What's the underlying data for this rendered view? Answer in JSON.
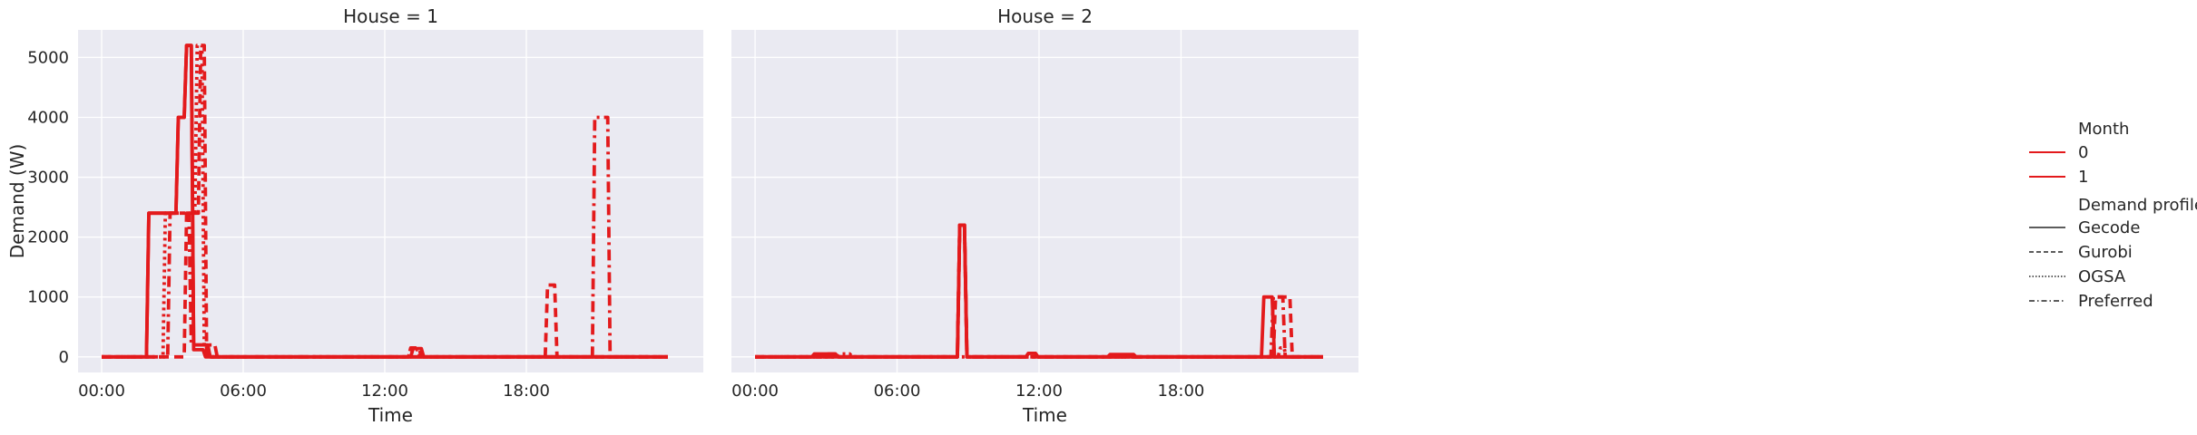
{
  "chart_data": {
    "type": "line",
    "ylabel": "Demand (W)",
    "xlabel": "Time",
    "y_ticks": [
      0,
      1000,
      2000,
      3000,
      4000,
      5000
    ],
    "x_ticks": [
      "00:00",
      "06:00",
      "12:00",
      "18:00"
    ],
    "x_tick_hours": [
      0,
      6,
      12,
      18
    ],
    "xlim_hours": [
      -1.0,
      25.5
    ],
    "ylim": [
      -260,
      5460
    ],
    "grid": true,
    "legend_placement": "right",
    "colors": {
      "line": "#e31a1c",
      "panel_bg": "#eaeaf2",
      "grid": "#ffffff",
      "text": "#262626"
    },
    "legend": {
      "hue_title": "Month",
      "hue_items": [
        "0",
        "1"
      ],
      "style_title": "Demand profile",
      "style_items": [
        {
          "label": "Gecode",
          "dash": "solid"
        },
        {
          "label": "Gurobi",
          "dash": "dashed"
        },
        {
          "label": "OGSA",
          "dash": "dotted"
        },
        {
          "label": "Preferred",
          "dash": "dashdot"
        }
      ]
    },
    "panels": [
      {
        "title": "House = 1",
        "series": [
          {
            "month": "0",
            "profile": "Gecode",
            "points": [
              [
                0,
                0
              ],
              [
                1.9,
                0
              ],
              [
                2.0,
                2400
              ],
              [
                3.15,
                2400
              ],
              [
                3.25,
                4000
              ],
              [
                3.5,
                4000
              ],
              [
                3.6,
                5200
              ],
              [
                3.8,
                5200
              ],
              [
                3.9,
                200
              ],
              [
                4.5,
                200
              ],
              [
                4.6,
                0
              ],
              [
                13.1,
                0
              ],
              [
                13.2,
                140
              ],
              [
                13.55,
                140
              ],
              [
                13.65,
                0
              ],
              [
                24,
                0
              ]
            ]
          },
          {
            "month": "1",
            "profile": "Gecode",
            "points": [
              [
                0,
                0
              ],
              [
                1.9,
                0
              ],
              [
                2.0,
                2400
              ],
              [
                3.15,
                2400
              ],
              [
                3.25,
                4000
              ],
              [
                3.5,
                4000
              ],
              [
                3.6,
                5200
              ],
              [
                3.8,
                5200
              ],
              [
                3.9,
                120
              ],
              [
                4.3,
                120
              ],
              [
                4.4,
                0
              ],
              [
                24,
                0
              ]
            ]
          },
          {
            "month": "0",
            "profile": "Gurobi",
            "points": [
              [
                0,
                0
              ],
              [
                3.5,
                0
              ],
              [
                3.6,
                2400
              ],
              [
                4.1,
                2400
              ],
              [
                4.2,
                5200
              ],
              [
                4.35,
                5200
              ],
              [
                4.45,
                0
              ],
              [
                13.0,
                0
              ],
              [
                13.1,
                150
              ],
              [
                13.45,
                150
              ],
              [
                13.55,
                0
              ],
              [
                18.8,
                0
              ],
              [
                18.9,
                1200
              ],
              [
                19.2,
                1200
              ],
              [
                19.3,
                0
              ],
              [
                24,
                0
              ]
            ]
          },
          {
            "month": "0",
            "profile": "OGSA",
            "points": [
              [
                0,
                0
              ],
              [
                2.6,
                0
              ],
              [
                2.7,
                2400
              ],
              [
                3.95,
                2400
              ],
              [
                4.05,
                5200
              ],
              [
                4.25,
                5200
              ],
              [
                4.35,
                150
              ],
              [
                4.5,
                150
              ],
              [
                4.6,
                0
              ],
              [
                13.0,
                0
              ],
              [
                13.1,
                120
              ],
              [
                13.4,
                120
              ],
              [
                13.5,
                0
              ],
              [
                24,
                0
              ]
            ]
          },
          {
            "month": "0",
            "profile": "Preferred",
            "points": [
              [
                0,
                0
              ],
              [
                2.8,
                0
              ],
              [
                2.9,
                2400
              ],
              [
                3.7,
                2400
              ],
              [
                3.8,
                200
              ],
              [
                4.8,
                200
              ],
              [
                4.9,
                0
              ],
              [
                20.8,
                0
              ],
              [
                20.9,
                4000
              ],
              [
                21.45,
                4000
              ],
              [
                21.55,
                0
              ],
              [
                24,
                0
              ]
            ]
          }
        ]
      },
      {
        "title": "House = 2",
        "series": [
          {
            "month": "0",
            "profile": "Gecode",
            "points": [
              [
                0,
                0
              ],
              [
                2.4,
                0
              ],
              [
                2.5,
                50
              ],
              [
                3.4,
                50
              ],
              [
                3.5,
                0
              ],
              [
                8.55,
                0
              ],
              [
                8.65,
                2200
              ],
              [
                8.85,
                2200
              ],
              [
                8.95,
                0
              ],
              [
                11.45,
                0
              ],
              [
                11.55,
                60
              ],
              [
                11.85,
                60
              ],
              [
                11.95,
                0
              ],
              [
                14.9,
                0
              ],
              [
                15.0,
                40
              ],
              [
                16.0,
                40
              ],
              [
                16.1,
                0
              ],
              [
                21.4,
                0
              ],
              [
                21.5,
                1000
              ],
              [
                21.85,
                1000
              ],
              [
                21.95,
                0
              ],
              [
                24,
                0
              ]
            ]
          },
          {
            "month": "1",
            "profile": "Gecode",
            "points": [
              [
                0,
                0
              ],
              [
                8.55,
                0
              ],
              [
                8.65,
                2200
              ],
              [
                8.85,
                2200
              ],
              [
                8.95,
                0
              ],
              [
                11.45,
                0
              ],
              [
                11.55,
                60
              ],
              [
                11.85,
                60
              ],
              [
                11.95,
                0
              ],
              [
                24,
                0
              ]
            ]
          },
          {
            "month": "0",
            "profile": "Gurobi",
            "points": [
              [
                0,
                0
              ],
              [
                3.0,
                0
              ],
              [
                3.1,
                50
              ],
              [
                3.5,
                50
              ],
              [
                3.6,
                0
              ],
              [
                8.55,
                0
              ],
              [
                8.65,
                2200
              ],
              [
                8.85,
                2200
              ],
              [
                8.95,
                0
              ],
              [
                21.9,
                0
              ],
              [
                22.0,
                1000
              ],
              [
                22.6,
                1000
              ],
              [
                22.7,
                0
              ],
              [
                24,
                0
              ]
            ]
          },
          {
            "month": "0",
            "profile": "OGSA",
            "points": [
              [
                0,
                0
              ],
              [
                3.5,
                0
              ],
              [
                3.6,
                50
              ],
              [
                4.0,
                50
              ],
              [
                4.1,
                0
              ],
              [
                22.1,
                0
              ],
              [
                22.2,
                150
              ],
              [
                22.35,
                150
              ],
              [
                22.45,
                0
              ],
              [
                24,
                0
              ]
            ]
          },
          {
            "month": "0",
            "profile": "Preferred",
            "points": [
              [
                0,
                0
              ],
              [
                8.55,
                0
              ],
              [
                8.65,
                2200
              ],
              [
                8.85,
                2200
              ],
              [
                8.95,
                0
              ],
              [
                21.8,
                0
              ],
              [
                21.9,
                1000
              ],
              [
                22.3,
                1000
              ],
              [
                22.4,
                0
              ],
              [
                24,
                0
              ]
            ]
          }
        ]
      }
    ]
  }
}
